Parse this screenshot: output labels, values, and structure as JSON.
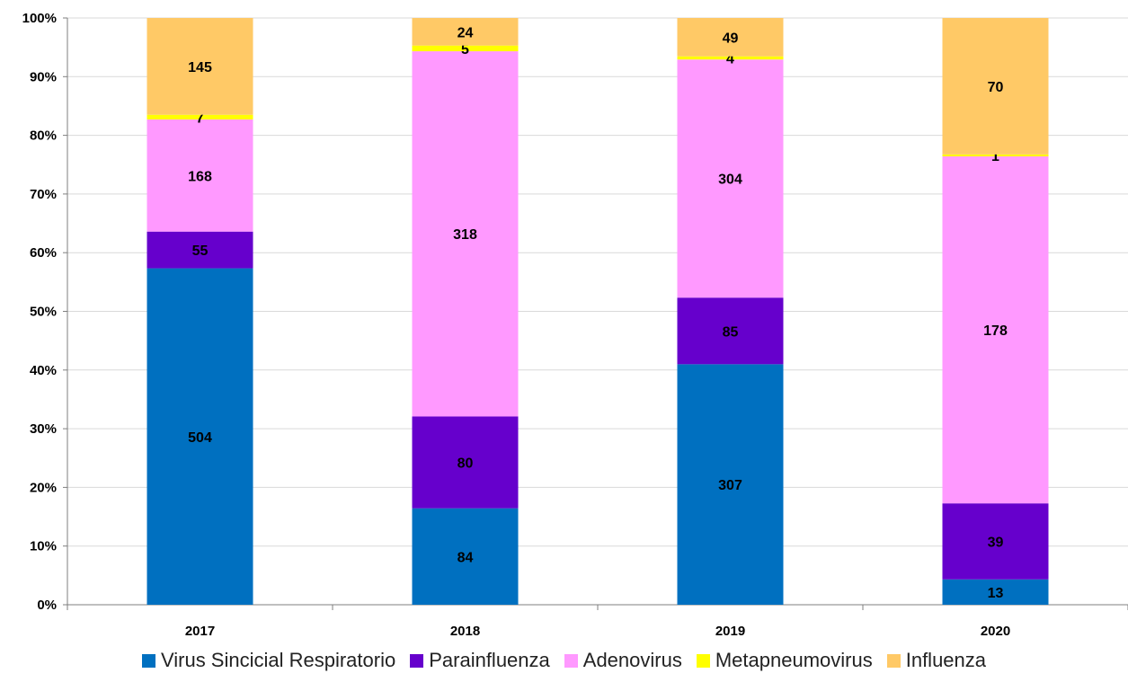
{
  "chart_data": {
    "type": "bar",
    "stacked": true,
    "normalized": true,
    "categories": [
      "2017",
      "2018",
      "2019",
      "2020"
    ],
    "series": [
      {
        "name": "Virus Sincicial Respiratorio",
        "color": "#0070c0",
        "values": [
          504,
          84,
          307,
          13
        ]
      },
      {
        "name": "Parainfluenza",
        "color": "#6600cc",
        "values": [
          55,
          80,
          85,
          39
        ]
      },
      {
        "name": "Adenovirus",
        "color": "#ff99ff",
        "values": [
          168,
          318,
          304,
          178
        ]
      },
      {
        "name": "Metapneumovirus",
        "color": "#ffff00",
        "values": [
          7,
          5,
          4,
          1
        ]
      },
      {
        "name": "Influenza",
        "color": "#ffc966",
        "values": [
          145,
          24,
          49,
          70
        ]
      }
    ],
    "y_ticks": [
      "0%",
      "10%",
      "20%",
      "30%",
      "40%",
      "50%",
      "60%",
      "70%",
      "80%",
      "90%",
      "100%"
    ],
    "ylim": [
      0,
      100
    ],
    "grid": true,
    "legend_position": "bottom"
  }
}
